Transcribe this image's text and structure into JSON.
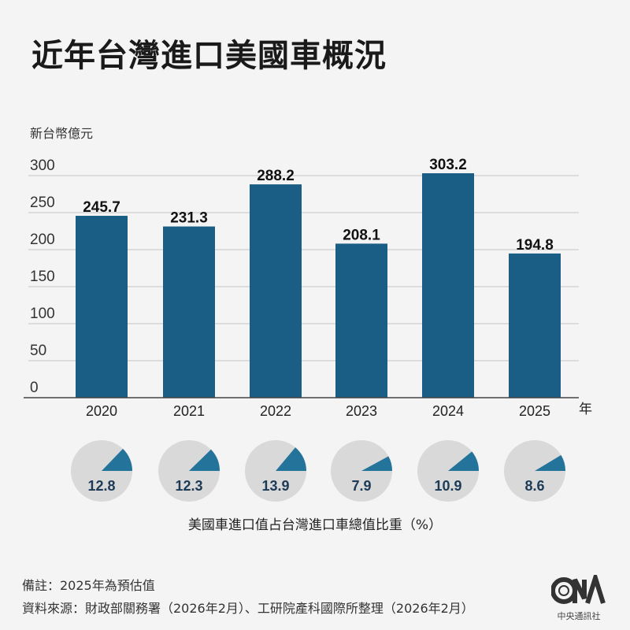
{
  "title": "近年台灣進口美國車概況",
  "chart_data": [
    {
      "type": "bar",
      "ylabel": "新台幣億元",
      "xlabel": "年",
      "categories": [
        "2020",
        "2021",
        "2022",
        "2023",
        "2024",
        "2025"
      ],
      "values": [
        245.7,
        231.3,
        288.2,
        208.1,
        303.2,
        194.8
      ],
      "value_labels": [
        "245.7",
        "231.3",
        "288.2",
        "208.1",
        "303.2",
        "194.8"
      ],
      "yticks": [
        "0",
        "50",
        "100",
        "150",
        "200",
        "250",
        "300"
      ],
      "ylim": [
        0,
        300
      ],
      "grid": true,
      "color": "#1a5e86"
    },
    {
      "type": "pie",
      "title": "美國車進口值占台灣進口車總值比重（%）",
      "categories": [
        "2020",
        "2021",
        "2022",
        "2023",
        "2024",
        "2025"
      ],
      "values": [
        12.8,
        12.3,
        13.9,
        7.9,
        10.9,
        8.6
      ],
      "value_labels": [
        "12.8",
        "12.3",
        "13.9",
        "7.9",
        "10.9",
        "8.6"
      ],
      "slice_color": "#23739a",
      "background_color": "#d9d9d9"
    }
  ],
  "notes": {
    "remark": "備註：2025年為預估值",
    "source": "資料來源：財政部關務署（2026年2月）、工研院產科國際所整理（2026年2月）"
  },
  "logo": {
    "letters": "CNA",
    "name": "中央通訊社"
  }
}
